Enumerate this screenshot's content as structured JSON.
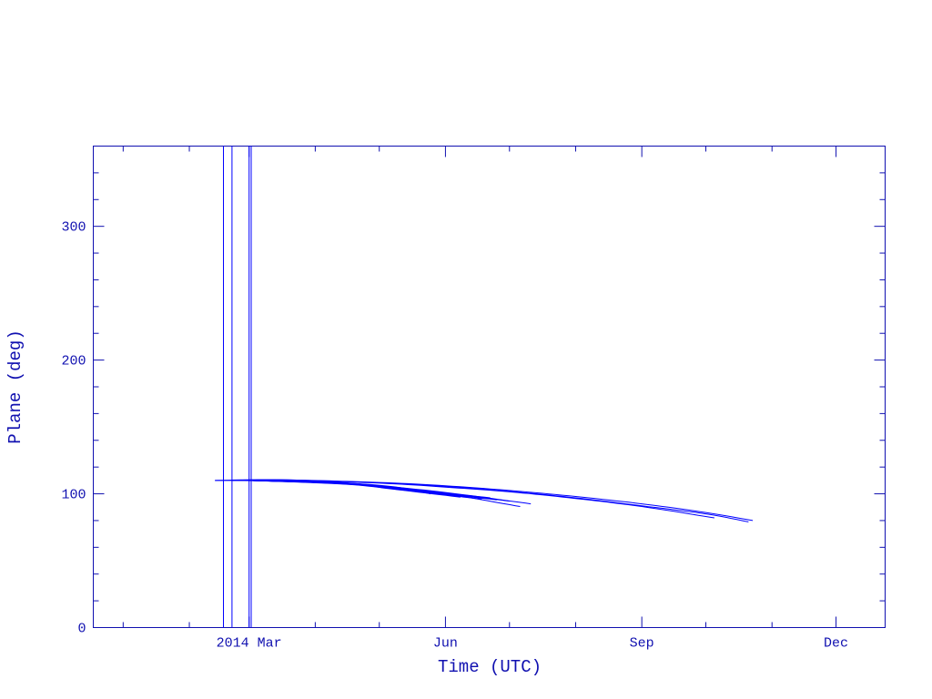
{
  "chart_data": {
    "type": "line",
    "title": "",
    "xlabel": "Time (UTC)",
    "ylabel": "Plane (deg)",
    "xlim": [
      "2013-12-18",
      "2014-12-24"
    ],
    "ylim": [
      0,
      360
    ],
    "grid": false,
    "x_ticks": [
      {
        "date": "2014-03-01",
        "label": "2014 Mar"
      },
      {
        "date": "2014-06-01",
        "label": "Jun"
      },
      {
        "date": "2014-09-01",
        "label": "Sep"
      },
      {
        "date": "2014-12-01",
        "label": "Dec"
      }
    ],
    "x_minor_ticks": [
      "2014-01-01",
      "2014-02-01",
      "2014-04-01",
      "2014-05-01",
      "2014-07-01",
      "2014-08-01",
      "2014-10-01",
      "2014-11-01"
    ],
    "y_ticks": [
      0,
      100,
      200,
      300
    ],
    "y_minor_step": 20,
    "colors": {
      "axis": "#1010b0",
      "series": "#0000ff"
    },
    "series": [
      {
        "points": [
          [
            "2014-02-13",
            110
          ],
          [
            "2014-03-15",
            110.5
          ],
          [
            "2014-05-01",
            108.5
          ],
          [
            "2014-06-01",
            106
          ],
          [
            "2014-07-01",
            102.5
          ],
          [
            "2014-08-01",
            98
          ],
          [
            "2014-09-01",
            92.5
          ],
          [
            "2014-10-01",
            86
          ],
          [
            "2014-10-23",
            80
          ]
        ]
      },
      {
        "points": [
          [
            "2014-02-21",
            110
          ],
          [
            "2014-03-15",
            110.5
          ],
          [
            "2014-05-01",
            108.2
          ],
          [
            "2014-06-01",
            105.5
          ],
          [
            "2014-07-01",
            101.8
          ],
          [
            "2014-08-01",
            97
          ],
          [
            "2014-09-01",
            91
          ],
          [
            "2014-10-01",
            85
          ],
          [
            "2014-10-21",
            79
          ]
        ]
      },
      {
        "points": [
          [
            "2014-03-01",
            110
          ],
          [
            "2014-03-15",
            110.4
          ],
          [
            "2014-05-01",
            108
          ],
          [
            "2014-06-01",
            105
          ],
          [
            "2014-07-01",
            101.5
          ],
          [
            "2014-08-01",
            96.5
          ],
          [
            "2014-09-01",
            90.5
          ],
          [
            "2014-10-05",
            82
          ]
        ]
      },
      {
        "points": [
          [
            "2014-02-13",
            110
          ],
          [
            "2014-04-01",
            109.5
          ],
          [
            "2014-05-01",
            106
          ],
          [
            "2014-06-01",
            101
          ],
          [
            "2014-07-11",
            92.5
          ]
        ]
      },
      {
        "points": [
          [
            "2014-02-21",
            110
          ],
          [
            "2014-04-01",
            109
          ],
          [
            "2014-05-01",
            105.5
          ],
          [
            "2014-06-01",
            100
          ],
          [
            "2014-07-06",
            90.5
          ]
        ]
      },
      {
        "points": [
          [
            "2014-03-01",
            110
          ],
          [
            "2014-04-01",
            109
          ],
          [
            "2014-05-01",
            105.8
          ],
          [
            "2014-06-01",
            100.5
          ],
          [
            "2014-07-01",
            94.5
          ]
        ]
      },
      {
        "points": [
          [
            "2014-03-01",
            110
          ],
          [
            "2014-04-15",
            107.5
          ],
          [
            "2014-05-10",
            103.5
          ],
          [
            "2014-06-25",
            95.5
          ]
        ]
      },
      {
        "points": [
          [
            "2014-03-01",
            110
          ],
          [
            "2014-04-15",
            107.8
          ],
          [
            "2014-05-10",
            104
          ],
          [
            "2014-06-22",
            97
          ]
        ]
      },
      {
        "points": [
          [
            "2014-03-01",
            110
          ],
          [
            "2014-04-15",
            107.4
          ],
          [
            "2014-05-10",
            103.2
          ],
          [
            "2014-06-18",
            96
          ]
        ]
      },
      {
        "points": [
          [
            "2014-03-01",
            110
          ],
          [
            "2014-04-15",
            107.7
          ],
          [
            "2014-05-10",
            104.2
          ],
          [
            "2014-06-12",
            98
          ]
        ]
      },
      {
        "points": [
          [
            "2014-03-01",
            110
          ],
          [
            "2014-04-15",
            107.2
          ],
          [
            "2014-05-10",
            103
          ],
          [
            "2014-06-08",
            97.5
          ]
        ]
      },
      {
        "points": [
          [
            "2014-03-01",
            110
          ],
          [
            "2014-04-15",
            107.9
          ],
          [
            "2014-05-10",
            104.5
          ],
          [
            "2014-06-01",
            99
          ]
        ]
      },
      {
        "points": [
          [
            "2014-03-01",
            110
          ],
          [
            "2014-04-15",
            108
          ],
          [
            "2014-05-10",
            104.8
          ],
          [
            "2014-05-25",
            100
          ]
        ]
      },
      {
        "points": [
          [
            "2014-02-17",
            0
          ],
          [
            "2014-02-17",
            360
          ]
        ]
      },
      {
        "points": [
          [
            "2014-02-21",
            0
          ],
          [
            "2014-02-21",
            360
          ]
        ]
      },
      {
        "points": [
          [
            "2014-03-01",
            0
          ],
          [
            "2014-03-01",
            360
          ]
        ]
      },
      {
        "points": [
          [
            "2014-03-02",
            0
          ],
          [
            "2014-03-02",
            360
          ]
        ]
      }
    ]
  }
}
